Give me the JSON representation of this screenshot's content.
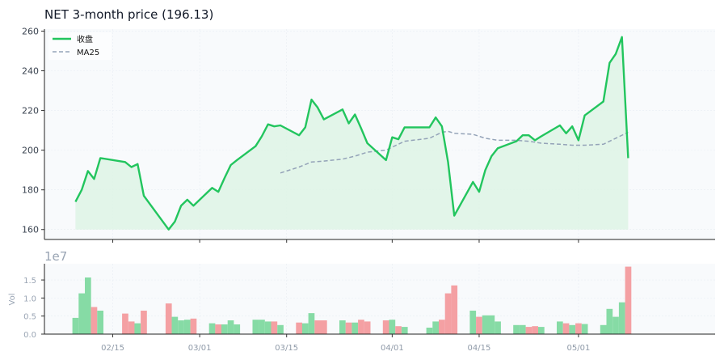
{
  "chart_data": {
    "type": "line",
    "title": "NET  3-month price (196.13)",
    "colors": {
      "price": "#22c55e",
      "price_fill": "#dcf4e4",
      "ma": "#94a3b8",
      "vol_up": "#86dba5",
      "vol_down": "#f4a0a3",
      "panel_bg": "#f8fafc",
      "grid": "#e8edf3"
    },
    "price_axis": {
      "ylim": [
        155,
        261
      ],
      "ticks": [
        160,
        180,
        200,
        220,
        240,
        260
      ]
    },
    "volume_axis": {
      "ylabel": "Vol",
      "offset_label": "1e7",
      "ylim": [
        0,
        1.95
      ],
      "ticks": [
        "0.0",
        "0.5",
        "1.0",
        "1.5"
      ],
      "tick_values": [
        0,
        0.5,
        1.0,
        1.5
      ]
    },
    "x_axis": {
      "range": [
        "2025-02-04",
        "2025-05-23"
      ],
      "tick_dates": [
        "2025-02-15",
        "2025-03-01",
        "2025-03-15",
        "2025-04-01",
        "2025-04-15",
        "2025-05-01"
      ],
      "tick_labels": [
        "02/15",
        "03/01",
        "03/15",
        "04/01",
        "04/15",
        "05/01"
      ]
    },
    "legend": {
      "placement": "top-left",
      "entries": [
        "收盘",
        "MA25"
      ]
    },
    "series": [
      {
        "name": "收盘",
        "style": "solid",
        "points": [
          [
            "2025-02-09",
            174.0
          ],
          [
            "2025-02-10",
            180.0
          ],
          [
            "2025-02-11",
            189.5
          ],
          [
            "2025-02-12",
            185.5
          ],
          [
            "2025-02-13",
            196.0
          ],
          [
            "2025-02-17",
            194.0
          ],
          [
            "2025-02-18",
            191.5
          ],
          [
            "2025-02-19",
            193.0
          ],
          [
            "2025-02-20",
            177.0
          ],
          [
            "2025-02-24",
            160.0
          ],
          [
            "2025-02-25",
            164.0
          ],
          [
            "2025-02-26",
            172.0
          ],
          [
            "2025-02-27",
            175.0
          ],
          [
            "2025-02-28",
            172.0
          ],
          [
            "2025-03-03",
            181.0
          ],
          [
            "2025-03-04",
            179.0
          ],
          [
            "2025-03-05",
            186.0
          ],
          [
            "2025-03-06",
            192.5
          ],
          [
            "2025-03-07",
            195.0
          ],
          [
            "2025-03-10",
            202.0
          ],
          [
            "2025-03-11",
            207.0
          ],
          [
            "2025-03-12",
            213.0
          ],
          [
            "2025-03-13",
            212.0
          ],
          [
            "2025-03-14",
            212.5
          ],
          [
            "2025-03-17",
            207.5
          ],
          [
            "2025-03-18",
            211.5
          ],
          [
            "2025-03-19",
            225.5
          ],
          [
            "2025-03-20",
            221.5
          ],
          [
            "2025-03-21",
            215.5
          ],
          [
            "2025-03-24",
            220.5
          ],
          [
            "2025-03-25",
            213.5
          ],
          [
            "2025-03-26",
            218.0
          ],
          [
            "2025-03-27",
            211.0
          ],
          [
            "2025-03-28",
            203.5
          ],
          [
            "2025-03-31",
            195.0
          ],
          [
            "2025-04-01",
            206.5
          ],
          [
            "2025-04-02",
            205.5
          ],
          [
            "2025-04-03",
            211.5
          ],
          [
            "2025-04-07",
            211.5
          ],
          [
            "2025-04-08",
            216.5
          ],
          [
            "2025-04-09",
            212.0
          ],
          [
            "2025-04-10",
            194.0
          ],
          [
            "2025-04-11",
            167.0
          ],
          [
            "2025-04-14",
            184.0
          ],
          [
            "2025-04-15",
            179.0
          ],
          [
            "2025-04-16",
            190.0
          ],
          [
            "2025-04-17",
            197.0
          ],
          [
            "2025-04-18",
            201.0
          ],
          [
            "2025-04-21",
            204.5
          ],
          [
            "2025-04-22",
            207.5
          ],
          [
            "2025-04-23",
            207.5
          ],
          [
            "2025-04-24",
            205.0
          ],
          [
            "2025-04-25",
            207.0
          ],
          [
            "2025-04-28",
            212.5
          ],
          [
            "2025-04-29",
            208.5
          ],
          [
            "2025-04-30",
            212.0
          ],
          [
            "2025-05-01",
            205.0
          ],
          [
            "2025-05-02",
            217.5
          ],
          [
            "2025-05-05",
            224.5
          ],
          [
            "2025-05-06",
            244.0
          ],
          [
            "2025-05-07",
            248.5
          ],
          [
            "2025-05-08",
            257.0
          ],
          [
            "2025-05-09",
            196.0
          ]
        ]
      },
      {
        "name": "MA25",
        "style": "dashed",
        "points": [
          [
            "2025-03-14",
            188.5
          ],
          [
            "2025-03-17",
            191.5
          ],
          [
            "2025-03-19",
            194.0
          ],
          [
            "2025-03-21",
            194.5
          ],
          [
            "2025-03-24",
            195.5
          ],
          [
            "2025-03-26",
            197.0
          ],
          [
            "2025-03-28",
            199.0
          ],
          [
            "2025-03-31",
            200.0
          ],
          [
            "2025-04-01",
            201.5
          ],
          [
            "2025-04-03",
            204.5
          ],
          [
            "2025-04-07",
            206.0
          ],
          [
            "2025-04-09",
            209.0
          ],
          [
            "2025-04-10",
            209.5
          ],
          [
            "2025-04-11",
            208.5
          ],
          [
            "2025-04-14",
            208.0
          ],
          [
            "2025-04-16",
            206.0
          ],
          [
            "2025-04-18",
            205.0
          ],
          [
            "2025-04-21",
            205.0
          ],
          [
            "2025-04-23",
            204.5
          ],
          [
            "2025-04-25",
            203.5
          ],
          [
            "2025-04-28",
            203.0
          ],
          [
            "2025-04-30",
            202.5
          ],
          [
            "2025-05-02",
            202.5
          ],
          [
            "2025-05-05",
            203.0
          ],
          [
            "2025-05-07",
            206.0
          ],
          [
            "2025-05-09",
            209.0
          ]
        ]
      }
    ],
    "volume": [
      [
        "2025-02-09",
        0.45,
        "up"
      ],
      [
        "2025-02-10",
        1.13,
        "up"
      ],
      [
        "2025-02-11",
        1.57,
        "up"
      ],
      [
        "2025-02-12",
        0.75,
        "down"
      ],
      [
        "2025-02-13",
        0.65,
        "up"
      ],
      [
        "2025-02-17",
        0.57,
        "down"
      ],
      [
        "2025-02-18",
        0.35,
        "down"
      ],
      [
        "2025-02-19",
        0.3,
        "up"
      ],
      [
        "2025-02-20",
        0.65,
        "down"
      ],
      [
        "2025-02-24",
        0.85,
        "down"
      ],
      [
        "2025-02-25",
        0.48,
        "up"
      ],
      [
        "2025-02-26",
        0.38,
        "up"
      ],
      [
        "2025-02-27",
        0.4,
        "up"
      ],
      [
        "2025-02-28",
        0.43,
        "down"
      ],
      [
        "2025-03-03",
        0.3,
        "up"
      ],
      [
        "2025-03-04",
        0.27,
        "down"
      ],
      [
        "2025-03-05",
        0.27,
        "up"
      ],
      [
        "2025-03-06",
        0.38,
        "up"
      ],
      [
        "2025-03-07",
        0.27,
        "up"
      ],
      [
        "2025-03-10",
        0.4,
        "up"
      ],
      [
        "2025-03-11",
        0.4,
        "up"
      ],
      [
        "2025-03-12",
        0.35,
        "up"
      ],
      [
        "2025-03-13",
        0.35,
        "down"
      ],
      [
        "2025-03-14",
        0.25,
        "up"
      ],
      [
        "2025-03-17",
        0.32,
        "down"
      ],
      [
        "2025-03-18",
        0.3,
        "up"
      ],
      [
        "2025-03-19",
        0.58,
        "up"
      ],
      [
        "2025-03-20",
        0.38,
        "down"
      ],
      [
        "2025-03-21",
        0.38,
        "down"
      ],
      [
        "2025-03-24",
        0.38,
        "up"
      ],
      [
        "2025-03-25",
        0.32,
        "down"
      ],
      [
        "2025-03-26",
        0.32,
        "up"
      ],
      [
        "2025-03-27",
        0.4,
        "down"
      ],
      [
        "2025-03-28",
        0.35,
        "down"
      ],
      [
        "2025-03-31",
        0.38,
        "down"
      ],
      [
        "2025-04-01",
        0.4,
        "up"
      ],
      [
        "2025-04-02",
        0.22,
        "down"
      ],
      [
        "2025-04-03",
        0.2,
        "up"
      ],
      [
        "2025-04-07",
        0.18,
        "up"
      ],
      [
        "2025-04-08",
        0.35,
        "up"
      ],
      [
        "2025-04-09",
        0.4,
        "down"
      ],
      [
        "2025-04-10",
        1.13,
        "down"
      ],
      [
        "2025-04-11",
        1.35,
        "down"
      ],
      [
        "2025-04-14",
        0.65,
        "up"
      ],
      [
        "2025-04-15",
        0.48,
        "down"
      ],
      [
        "2025-04-16",
        0.52,
        "up"
      ],
      [
        "2025-04-17",
        0.52,
        "up"
      ],
      [
        "2025-04-18",
        0.35,
        "up"
      ],
      [
        "2025-04-21",
        0.25,
        "up"
      ],
      [
        "2025-04-22",
        0.25,
        "up"
      ],
      [
        "2025-04-23",
        0.2,
        "down"
      ],
      [
        "2025-04-24",
        0.22,
        "down"
      ],
      [
        "2025-04-25",
        0.2,
        "up"
      ],
      [
        "2025-04-28",
        0.35,
        "up"
      ],
      [
        "2025-04-29",
        0.3,
        "down"
      ],
      [
        "2025-04-30",
        0.25,
        "up"
      ],
      [
        "2025-05-01",
        0.3,
        "down"
      ],
      [
        "2025-05-02",
        0.28,
        "up"
      ],
      [
        "2025-05-05",
        0.25,
        "up"
      ],
      [
        "2025-05-06",
        0.7,
        "up"
      ],
      [
        "2025-05-07",
        0.48,
        "up"
      ],
      [
        "2025-05-08",
        0.88,
        "up"
      ],
      [
        "2025-05-09",
        1.87,
        "down"
      ]
    ]
  }
}
